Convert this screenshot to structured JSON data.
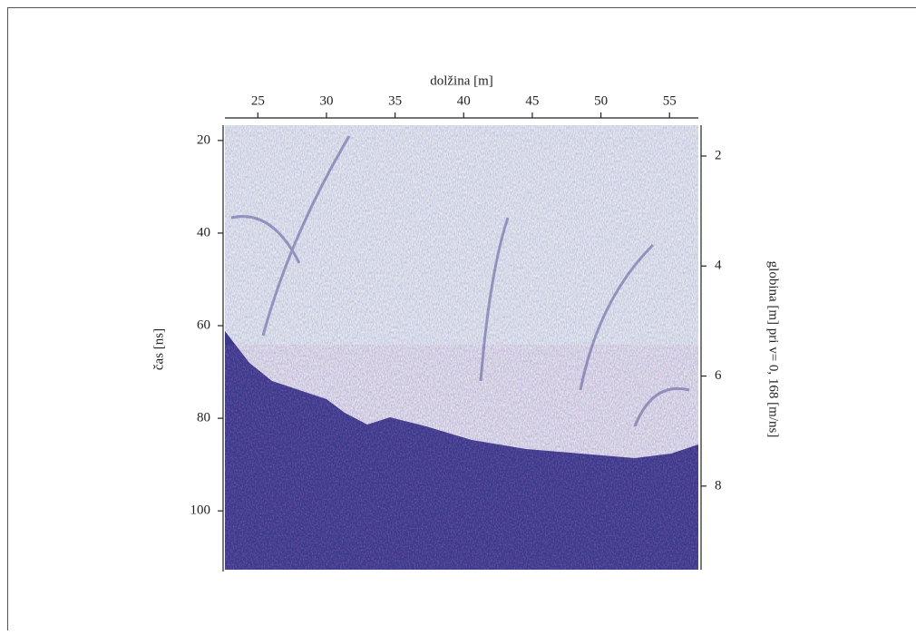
{
  "chart_data": {
    "type": "image",
    "xlabel": "dolžina [m]",
    "ylabel": "čas [ns]",
    "y2label": "globina [m] pri v= 0, 168 [m/ns]",
    "xlim": [
      22.6,
      57.1
    ],
    "xticks": [
      25,
      30,
      35,
      40,
      45,
      50,
      55
    ],
    "ylim": [
      16.7,
      112.7
    ],
    "yticks": [
      20,
      40,
      60,
      80,
      100
    ],
    "y2lim": [
      1.44,
      9.52
    ],
    "y2ticks": [
      2,
      4,
      6,
      8
    ],
    "y_inverted": true
  }
}
